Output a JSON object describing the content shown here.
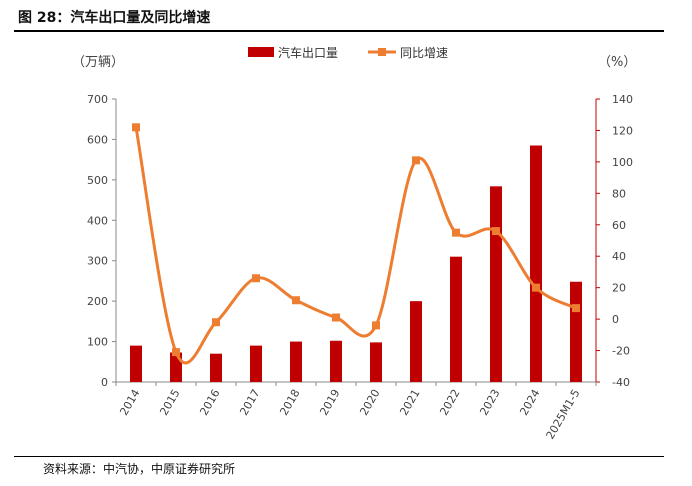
{
  "figure_title": "图 28：汽车出口量及同比增速",
  "source": "资料来源：中汽协，中原证券研究所",
  "chart_data": {
    "type": "bar",
    "categories": [
      "2014",
      "2015",
      "2016",
      "2017",
      "2018",
      "2019",
      "2020",
      "2021",
      "2022",
      "2023",
      "2024",
      "2025M1-5"
    ],
    "series": [
      {
        "name": "汽车出口量",
        "type": "bar",
        "axis": "left",
        "color": "#c00000",
        "values": [
          90,
          73,
          70,
          90,
          100,
          102,
          98,
          200,
          310,
          484,
          585,
          248
        ]
      },
      {
        "name": "同比增速",
        "type": "line",
        "axis": "right",
        "color": "#ed7d31",
        "values": [
          122,
          -21,
          -2,
          26,
          12,
          1,
          -4,
          101,
          55,
          56,
          20,
          7
        ]
      }
    ],
    "left_axis": {
      "unit": "（万辆）",
      "ylim": [
        0,
        700
      ],
      "ticks": [
        0,
        100,
        200,
        300,
        400,
        500,
        600,
        700
      ]
    },
    "right_axis": {
      "unit": "（%）",
      "ylim": [
        -40,
        140
      ],
      "ticks": [
        -40,
        -20,
        0,
        20,
        40,
        60,
        80,
        100,
        120,
        140
      ],
      "color": "#c00000"
    },
    "legend": "top-center",
    "grid": false
  }
}
